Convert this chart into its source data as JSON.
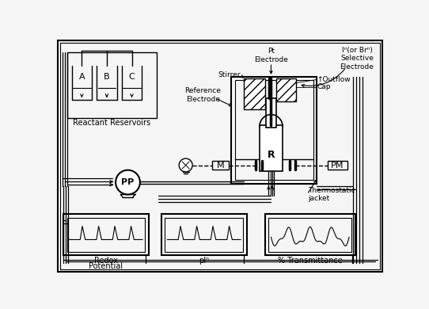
{
  "bg_color": "#f5f5f5",
  "line_color": "#000000",
  "labels": {
    "reactant_reservoirs": "Reactant Reservoirs",
    "reservoir_a": "A",
    "reservoir_b": "B",
    "reservoir_c": "C",
    "reference_electrode": "Reference\nElectrode",
    "pt_electrode": "Pt\nElectrode",
    "i_electrode": "Iⁿ(or Brⁿ)\nSelective\nElectrode",
    "stirrer": "Stirrer",
    "outflow": "↑Outflow",
    "cap": "Cap",
    "thermostatic": "Thermostatic\njacket",
    "pp": "PP",
    "m_label": "M",
    "r_label": "R",
    "pm_label": "PM",
    "redox_line1": "Redox",
    "redox_line2": "Potential",
    "pi": "pIⁿ",
    "transmittance": "% Transmittance"
  }
}
